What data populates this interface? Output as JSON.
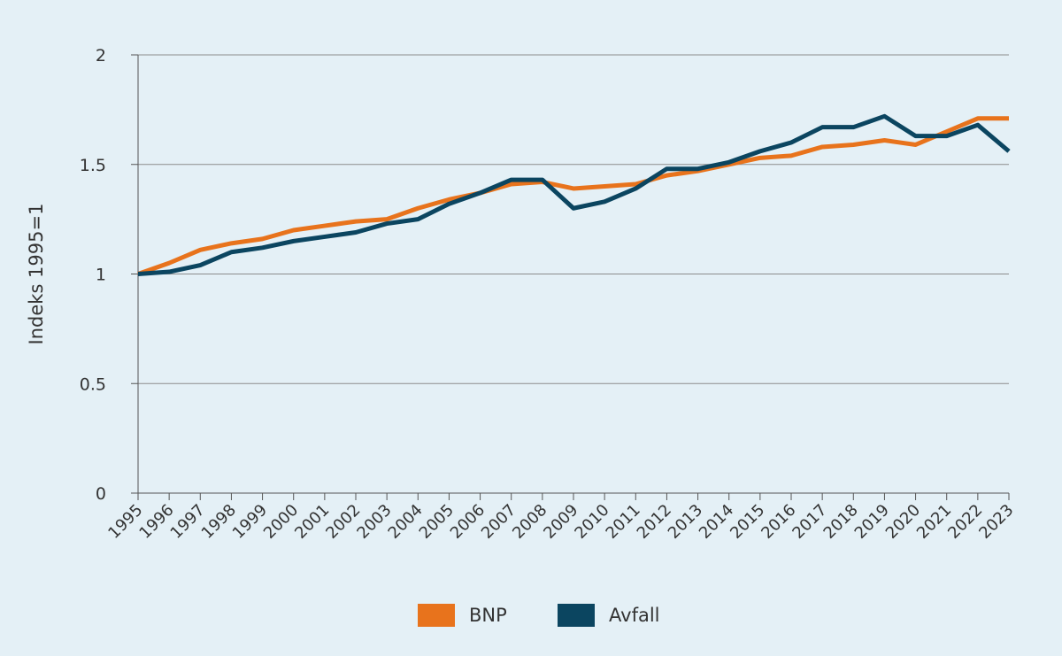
{
  "chart_data": {
    "type": "line",
    "title": "",
    "xlabel": "",
    "ylabel": "Indeks 1995=1",
    "ylim": [
      0,
      2
    ],
    "yticks": [
      "0",
      "0.5",
      "1",
      "1.5",
      "2"
    ],
    "grid": true,
    "legend_position": "bottom",
    "categories": [
      "1995",
      "1996",
      "1997",
      "1998",
      "1999",
      "2000",
      "2001",
      "2002",
      "2003",
      "2004",
      "2005",
      "2006",
      "2007",
      "2008",
      "2009",
      "2010",
      "2011",
      "2012",
      "2013",
      "2014",
      "2015",
      "2016",
      "2017",
      "2018",
      "2019",
      "2020",
      "2021",
      "2022",
      "2023"
    ],
    "series": [
      {
        "name": "BNP",
        "color": "#e8731c",
        "values": [
          1.0,
          1.05,
          1.11,
          1.14,
          1.16,
          1.2,
          1.22,
          1.24,
          1.25,
          1.3,
          1.34,
          1.37,
          1.41,
          1.42,
          1.39,
          1.4,
          1.41,
          1.45,
          1.47,
          1.5,
          1.53,
          1.54,
          1.58,
          1.59,
          1.61,
          1.59,
          1.65,
          1.71,
          1.71
        ]
      },
      {
        "name": "Avfall",
        "color": "#0b4560",
        "values": [
          1.0,
          1.01,
          1.04,
          1.1,
          1.12,
          1.15,
          1.17,
          1.19,
          1.23,
          1.25,
          1.32,
          1.37,
          1.43,
          1.43,
          1.3,
          1.33,
          1.39,
          1.48,
          1.48,
          1.51,
          1.56,
          1.6,
          1.67,
          1.67,
          1.72,
          1.63,
          1.63,
          1.68,
          1.56
        ]
      }
    ]
  }
}
